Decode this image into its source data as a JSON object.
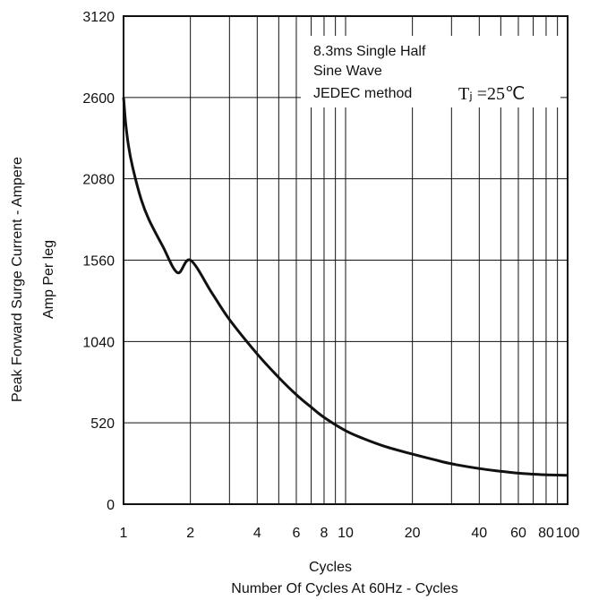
{
  "chart_data": {
    "type": "line",
    "ylabel_lines": [
      "Peak Forward Surge Current - Ampere",
      "Amp    Per leg"
    ],
    "xlabel_lines": [
      "Cycles",
      "Number Of Cycles At  60Hz  - Cycles"
    ],
    "x_scale": "log",
    "xlim": [
      1,
      100
    ],
    "ylim": [
      0,
      3120
    ],
    "x_ticks": [
      1,
      2,
      4,
      6,
      8,
      10,
      20,
      40,
      60,
      80,
      100
    ],
    "y_ticks": [
      0,
      520,
      1040,
      1560,
      2080,
      2600,
      3120
    ],
    "grid": true,
    "annotation": {
      "lines": [
        "8.3ms  Single   Half",
        "Sine   Wave",
        "JEDEC  method"
      ],
      "temp": "Tⱼ =25℃"
    },
    "series": [
      {
        "x": [
          1,
          1.02,
          1.05,
          1.1,
          1.2,
          1.3,
          1.5,
          1.75,
          2,
          2.5,
          3,
          4,
          5,
          6,
          7,
          8,
          10,
          12,
          15,
          20,
          25,
          30,
          40,
          50,
          60,
          70,
          80,
          90,
          100
        ],
        "y": [
          2600,
          2450,
          2300,
          2150,
          1950,
          1820,
          1650,
          1480,
          1560,
          1350,
          1180,
          960,
          810,
          700,
          620,
          555,
          470,
          420,
          370,
          320,
          285,
          258,
          228,
          210,
          198,
          192,
          188,
          186,
          185
        ]
      }
    ]
  }
}
